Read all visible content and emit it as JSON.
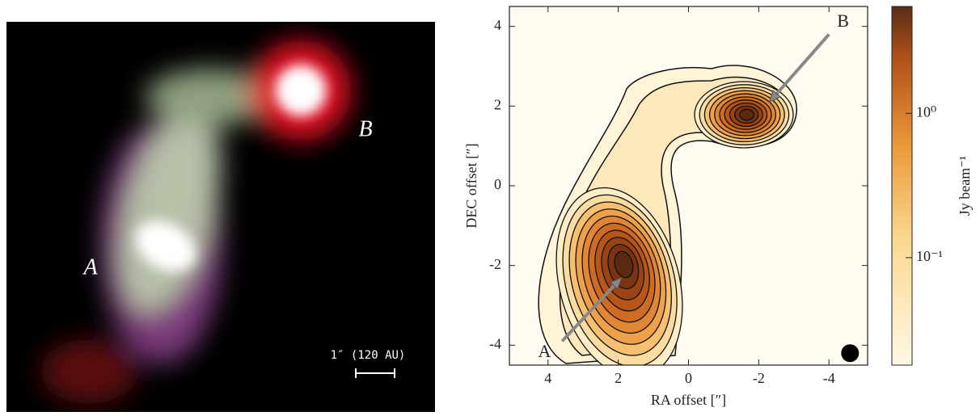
{
  "chart_data": [
    {
      "type": "image",
      "annotations": [
        {
          "text": "A"
        },
        {
          "text": "B"
        }
      ],
      "scalebar_label": "1″ (120 AU)"
    },
    {
      "type": "contour",
      "xlabel": "RA offset [″]",
      "ylabel": "DEC offset [″]",
      "xlim": [
        5.1,
        -5.1
      ],
      "ylim": [
        -4.5,
        4.5
      ],
      "xticks": [
        4,
        2,
        0,
        -2,
        -4
      ],
      "yticks": [
        4,
        2,
        0,
        -2,
        -4
      ],
      "annotations": [
        {
          "text": "A",
          "x": 4.1,
          "y": -4.2,
          "arrow": [
            3.6,
            -3.9,
            1.9,
            -2.3
          ]
        },
        {
          "text": "B",
          "x": -4.4,
          "y": 4.1,
          "arrow": [
            -4.0,
            3.8,
            -2.3,
            2.1
          ]
        }
      ],
      "beam": {
        "x": -4.6,
        "y": -4.2
      },
      "colorbar": {
        "label": "Jy beam⁻¹",
        "lim": [
          0.018,
          5.5
        ],
        "log": true,
        "ticks": [
          {
            "value": 1,
            "label": "10⁰"
          },
          {
            "value": 0.1,
            "label": "10⁻¹"
          }
        ]
      }
    }
  ]
}
